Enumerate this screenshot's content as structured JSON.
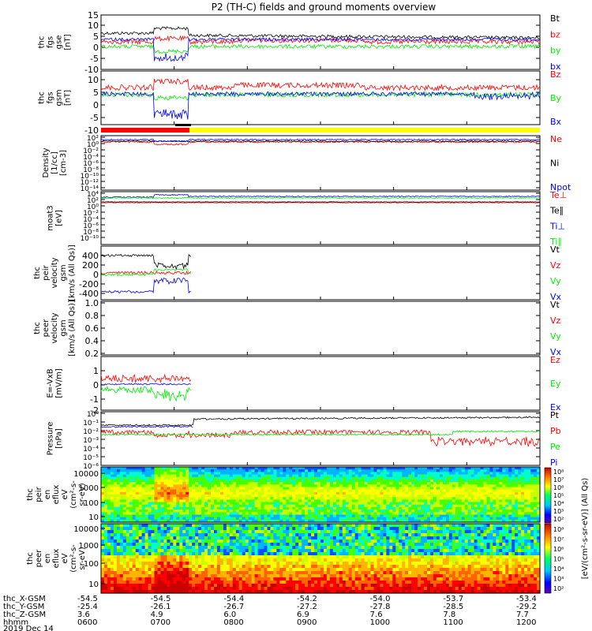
{
  "title": "P2 (TH-C) fields and ground moments overview",
  "colors": {
    "black": "#000000",
    "red": "#ff0000",
    "green": "#00ee00",
    "blue": "#0000ff",
    "yellow": "#ffff00"
  },
  "chart_data": [
    {
      "id": "fgs-gse",
      "type": "line",
      "ylabel": [
        "thc",
        "fgs",
        "gse",
        "[nT]"
      ],
      "yticks": [
        "15",
        "10",
        "5",
        "0",
        "-5",
        "-10"
      ],
      "ylim": [
        -10,
        15
      ],
      "series": [
        {
          "name": "Bt",
          "color": "black"
        },
        {
          "name": "bz",
          "color": "red"
        },
        {
          "name": "by",
          "color": "green"
        },
        {
          "name": "bx",
          "color": "blue"
        }
      ]
    },
    {
      "id": "fgs-gsm",
      "type": "line",
      "ylabel": [
        "thc",
        "fgs",
        "gsm",
        "[nT]"
      ],
      "yticks": [
        "10",
        "5",
        "0",
        "-5",
        "-10",
        "-15"
      ],
      "ylim": [
        -17,
        13
      ],
      "series": [
        {
          "name": "Bz",
          "color": "red"
        },
        {
          "name": "By",
          "color": "green"
        },
        {
          "name": "Bx",
          "color": "blue"
        }
      ]
    },
    {
      "id": "density",
      "type": "line",
      "ylabel": [
        "Density",
        "[1/cc]",
        "[cm-3]"
      ],
      "yticks": [
        "10²",
        "10⁰",
        "10⁻²",
        "10⁻⁴",
        "10⁻⁶",
        "10⁻⁸",
        "10⁻¹⁰",
        "10⁻¹²",
        "10⁻¹⁴"
      ],
      "log": true,
      "series": [
        {
          "name": "Ne",
          "color": "red"
        },
        {
          "name": "Ni",
          "color": "black"
        },
        {
          "name": "Npot",
          "color": "blue"
        }
      ]
    },
    {
      "id": "temperature",
      "type": "line",
      "ylabel": [
        "moat3",
        "[eV]"
      ],
      "yticks": [
        "10⁴",
        "10²",
        "10⁰",
        "10⁻²",
        "10⁻⁴",
        "10⁻⁶",
        "10⁻⁸",
        "10⁻¹⁰"
      ],
      "log": true,
      "series": [
        {
          "name": "Te⊥",
          "color": "red"
        },
        {
          "name": "Te∥",
          "color": "black"
        },
        {
          "name": "Ti⊥",
          "color": "blue"
        },
        {
          "name": "Ti∥",
          "color": "green"
        }
      ]
    },
    {
      "id": "peir-velocity",
      "type": "line",
      "ylabel": [
        "thc",
        "peir",
        "velocity",
        "gsm",
        "[km/s (All Qs)]"
      ],
      "yticks": [
        "400",
        "200",
        "0",
        "-200",
        "-400"
      ],
      "ylim": [
        -400,
        400
      ],
      "series": [
        {
          "name": "Vt",
          "color": "black"
        },
        {
          "name": "Vz",
          "color": "red"
        },
        {
          "name": "Vy",
          "color": "green"
        },
        {
          "name": "Vx",
          "color": "blue"
        }
      ]
    },
    {
      "id": "peer-velocity",
      "type": "line",
      "ylabel": [
        "thc",
        "peer",
        "velocity",
        "gsm",
        "[km/s (All Qs)]"
      ],
      "yticks": [
        "1.0",
        "0.8",
        "0.6",
        "0.4",
        "0.2",
        "0.0"
      ],
      "ylim": [
        0,
        1
      ],
      "series": [
        {
          "name": "Vt",
          "color": "black"
        },
        {
          "name": "Vz",
          "color": "red"
        },
        {
          "name": "Vy",
          "color": "green"
        },
        {
          "name": "Vx",
          "color": "blue"
        }
      ]
    },
    {
      "id": "efield",
      "type": "line",
      "ylabel": [
        "E=-VxB",
        "[mV/m]"
      ],
      "yticks": [
        "1",
        "0",
        "-1",
        "-2"
      ],
      "ylim": [
        -2,
        1.4
      ],
      "series": [
        {
          "name": "Ez",
          "color": "red"
        },
        {
          "name": "Ey",
          "color": "green"
        },
        {
          "name": "Ex",
          "color": "blue"
        }
      ]
    },
    {
      "id": "pressure",
      "type": "line",
      "ylabel": [
        "Pressure",
        "[nPa]"
      ],
      "yticks": [
        "10⁰",
        "10⁻¹",
        "10⁻²",
        "10⁻³",
        "10⁻⁴",
        "10⁻⁵",
        "10⁻⁶"
      ],
      "log": true,
      "series": [
        {
          "name": "Pt",
          "color": "black"
        },
        {
          "name": "Pb",
          "color": "red"
        },
        {
          "name": "Pe",
          "color": "green"
        },
        {
          "name": "Pi",
          "color": "blue"
        }
      ]
    },
    {
      "id": "peir-spectrogram",
      "type": "heatmap",
      "ylabel": [
        "thc",
        "peir",
        "en",
        "eflux",
        "eV",
        "(cm²-s-",
        "sr-eV)"
      ],
      "yticks": [
        "10000",
        "1000",
        "100",
        "10"
      ]
    },
    {
      "id": "peer-spectrogram",
      "type": "heatmap",
      "ylabel": [
        "thc",
        "peer",
        "en",
        "eflux",
        "eV",
        "(cm²-s-",
        "sr-eV)"
      ],
      "yticks": [
        "10000",
        "1000",
        "100",
        "10"
      ]
    }
  ],
  "colorbar": {
    "ticks": [
      "10⁸",
      "10⁷",
      "10⁶",
      "10⁵",
      "10⁴",
      "10³",
      "10²"
    ],
    "label": "[eV/(cm²-s-sr-eV)] (All Qs)"
  },
  "xaxis": {
    "row_labels": [
      "thc_X-GSM",
      "thc_Y-GSM",
      "thc_Z-GSM",
      "hhmm",
      "2019 Dec 14"
    ],
    "x_gsm": [
      "-54.5",
      "-54.5",
      "-54.4",
      "-54.2",
      "-54.0",
      "-53.7",
      "-53.4"
    ],
    "y_gsm": [
      "-25.4",
      "-26.1",
      "-26.7",
      "-27.2",
      "-27.8",
      "-28.5",
      "-29.2"
    ],
    "z_gsm": [
      "3.6",
      "4.9",
      "6.0",
      "6.9",
      "7.6",
      "7.8",
      "7.7"
    ],
    "hhmm": [
      "0600",
      "0700",
      "0800",
      "0900",
      "1000",
      "1100",
      "1200"
    ]
  }
}
